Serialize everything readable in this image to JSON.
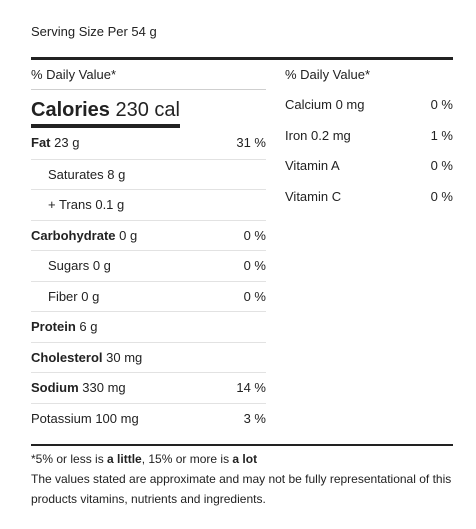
{
  "serving": "Serving Size Per 54 g",
  "daily_value_header": "% Daily Value*",
  "calories": {
    "label": "Calories",
    "value": "230 cal"
  },
  "left_rows": [
    {
      "label": "Fat",
      "amount": "23 g",
      "pct": "31 %",
      "bold": true,
      "indent": false
    },
    {
      "label": "Saturates",
      "amount": "8 g",
      "pct": "",
      "bold": false,
      "indent": true
    },
    {
      "label": "+ Trans",
      "amount": "0.1 g",
      "pct": "",
      "bold": false,
      "indent": true
    },
    {
      "label": "Carbohydrate",
      "amount": "0 g",
      "pct": "0 %",
      "bold": true,
      "indent": false
    },
    {
      "label": "Sugars",
      "amount": "0 g",
      "pct": "0 %",
      "bold": false,
      "indent": true
    },
    {
      "label": "Fiber",
      "amount": "0 g",
      "pct": "0 %",
      "bold": false,
      "indent": true
    },
    {
      "label": "Protein",
      "amount": "6 g",
      "pct": "",
      "bold": true,
      "indent": false
    },
    {
      "label": "Cholesterol",
      "amount": "30 mg",
      "pct": "",
      "bold": true,
      "indent": false
    },
    {
      "label": "Sodium",
      "amount": "330 mg",
      "pct": "14 %",
      "bold": true,
      "indent": false
    },
    {
      "label": "Potassium",
      "amount": "100 mg",
      "pct": "3 %",
      "bold": false,
      "indent": false
    }
  ],
  "right_rows": [
    {
      "label": "Calcium 0 mg",
      "pct": "0 %"
    },
    {
      "label": "Iron 0.2 mg",
      "pct": "1 %"
    },
    {
      "label": "Vitamin A",
      "pct": "0 %"
    },
    {
      "label": "Vitamin C",
      "pct": "0 %"
    }
  ],
  "footnote": {
    "prefix": "*5% or less is ",
    "little": "a little",
    "middle": ", 15% or more is ",
    "lot": "a lot",
    "disclaimer": "The values stated are approximate and may not be fully representational of this products vitamins, nutrients and ingredients."
  }
}
